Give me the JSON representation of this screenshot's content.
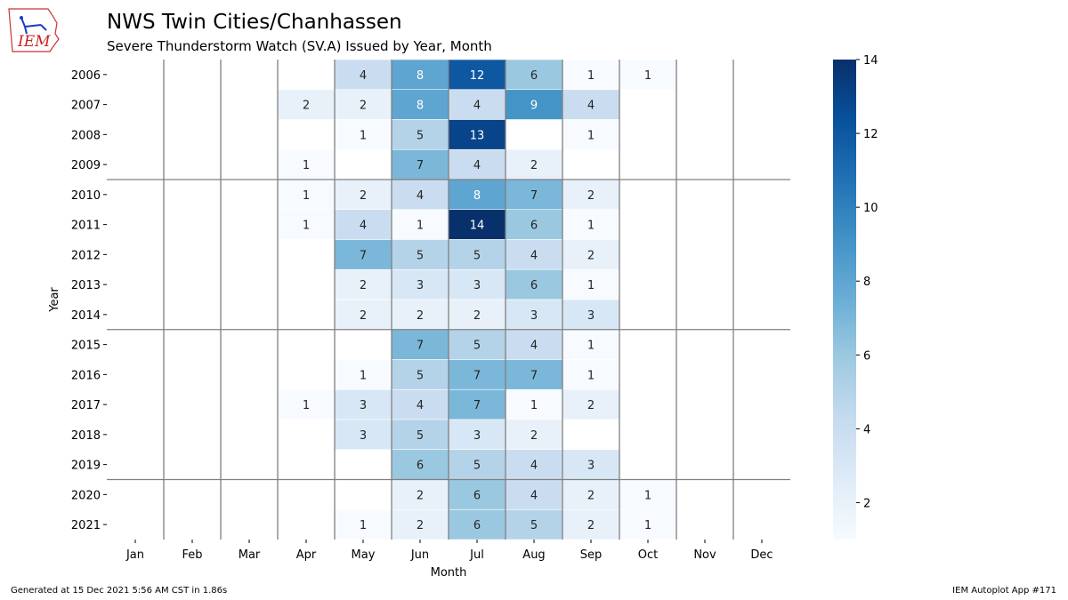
{
  "header": {
    "title": "NWS Twin Cities/Chanhassen",
    "subtitle": "Severe Thunderstorm Watch (SV.A) Issued by Year, Month"
  },
  "logo": {
    "text": "IEM"
  },
  "footer": {
    "generated": "Generated at 15 Dec 2021 5:56 AM CST in 1.86s",
    "app": "IEM Autoplot App #171"
  },
  "chart_data": {
    "type": "heatmap",
    "xlabel": "Month",
    "ylabel": "Year",
    "x_categories": [
      "Jan",
      "Feb",
      "Mar",
      "Apr",
      "May",
      "Jun",
      "Jul",
      "Aug",
      "Sep",
      "Oct",
      "Nov",
      "Dec"
    ],
    "y_categories": [
      "2006",
      "2007",
      "2008",
      "2009",
      "2010",
      "2011",
      "2012",
      "2013",
      "2014",
      "2015",
      "2016",
      "2017",
      "2018",
      "2019",
      "2020",
      "2021"
    ],
    "values": [
      [
        null,
        null,
        null,
        null,
        4,
        8,
        12,
        6,
        1,
        1,
        null,
        null
      ],
      [
        null,
        null,
        null,
        2,
        2,
        8,
        4,
        9,
        4,
        null,
        null,
        null
      ],
      [
        null,
        null,
        null,
        null,
        1,
        5,
        13,
        null,
        1,
        null,
        null,
        null
      ],
      [
        null,
        null,
        null,
        1,
        null,
        7,
        4,
        2,
        null,
        null,
        null,
        null
      ],
      [
        null,
        null,
        null,
        1,
        2,
        4,
        8,
        7,
        2,
        null,
        null,
        null
      ],
      [
        null,
        null,
        null,
        1,
        4,
        1,
        14,
        6,
        1,
        null,
        null,
        null
      ],
      [
        null,
        null,
        null,
        null,
        7,
        5,
        5,
        4,
        2,
        null,
        null,
        null
      ],
      [
        null,
        null,
        null,
        null,
        2,
        3,
        3,
        6,
        1,
        null,
        null,
        null
      ],
      [
        null,
        null,
        null,
        null,
        2,
        2,
        2,
        3,
        3,
        null,
        null,
        null
      ],
      [
        null,
        null,
        null,
        null,
        null,
        7,
        5,
        4,
        1,
        null,
        null,
        null
      ],
      [
        null,
        null,
        null,
        null,
        1,
        5,
        7,
        7,
        1,
        null,
        null,
        null
      ],
      [
        null,
        null,
        null,
        1,
        3,
        4,
        7,
        1,
        2,
        null,
        null,
        null
      ],
      [
        null,
        null,
        null,
        null,
        3,
        5,
        3,
        2,
        null,
        null,
        null,
        null
      ],
      [
        null,
        null,
        null,
        null,
        null,
        6,
        5,
        4,
        3,
        null,
        null,
        null
      ],
      [
        null,
        null,
        null,
        null,
        null,
        2,
        6,
        4,
        2,
        1,
        null,
        null
      ],
      [
        null,
        null,
        null,
        null,
        1,
        2,
        6,
        5,
        2,
        1,
        null,
        null
      ]
    ],
    "colorbar": {
      "min": 1,
      "max": 14,
      "ticks": [
        2,
        4,
        6,
        8,
        10,
        12,
        14
      ],
      "colormap": "Blues"
    },
    "season_divider_years_after": [
      "2009",
      "2014",
      "2019"
    ],
    "grid_color": "#808080"
  }
}
